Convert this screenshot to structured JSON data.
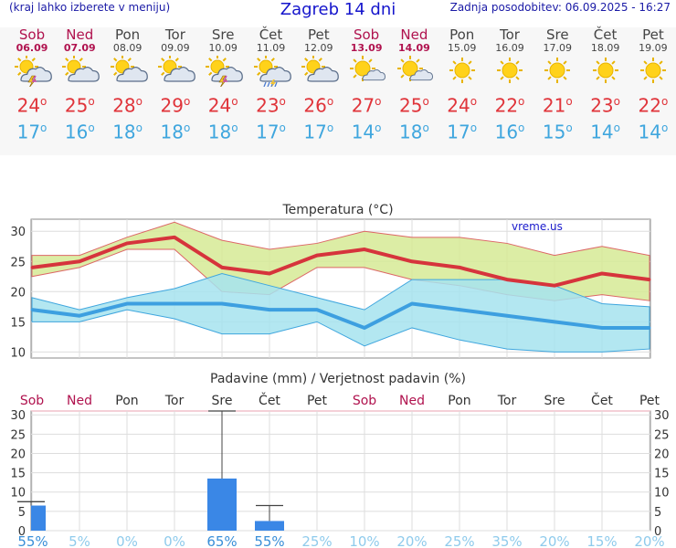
{
  "header": {
    "menu_hint": "(kraj lahko izberete v meniju)",
    "title": "Zagreb 14 dni",
    "last_update": "Zadnja posodobitev: 06.09.2025 - 16:27"
  },
  "colors": {
    "max_temp": "#e0343a",
    "min_temp": "#3fa6de",
    "weekend": "#b0124e",
    "bar": "#3a87e6",
    "max_band": "#d6ea95",
    "min_band": "#a6e3ee"
  },
  "forecast": [
    {
      "day": "Sob",
      "date": "06.09",
      "icon": "sun-cloud-thunder-icon",
      "max": "24",
      "min": "17",
      "weekend": true
    },
    {
      "day": "Ned",
      "date": "07.09",
      "icon": "sun-cloud-icon",
      "max": "25",
      "min": "16",
      "weekend": true
    },
    {
      "day": "Pon",
      "date": "08.09",
      "icon": "sun-cloud-icon",
      "max": "28",
      "min": "18",
      "weekend": false
    },
    {
      "day": "Tor",
      "date": "09.09",
      "icon": "sun-cloud-icon",
      "max": "29",
      "min": "18",
      "weekend": false
    },
    {
      "day": "Sre",
      "date": "10.09",
      "icon": "sun-cloud-thunder-icon",
      "max": "24",
      "min": "18",
      "weekend": false
    },
    {
      "day": "Čet",
      "date": "11.09",
      "icon": "sun-cloud-rain-icon",
      "max": "23",
      "min": "17",
      "weekend": false
    },
    {
      "day": "Pet",
      "date": "12.09",
      "icon": "sun-cloud-icon",
      "max": "26",
      "min": "17",
      "weekend": false
    },
    {
      "day": "Sob",
      "date": "13.09",
      "icon": "sun-small-cloud-icon",
      "max": "27",
      "min": "14",
      "weekend": true
    },
    {
      "day": "Ned",
      "date": "14.09",
      "icon": "sun-small-cloud-icon",
      "max": "25",
      "min": "18",
      "weekend": true
    },
    {
      "day": "Pon",
      "date": "15.09",
      "icon": "sun-icon",
      "max": "24",
      "min": "17",
      "weekend": false
    },
    {
      "day": "Tor",
      "date": "16.09",
      "icon": "sun-icon",
      "max": "22",
      "min": "16",
      "weekend": false
    },
    {
      "day": "Sre",
      "date": "17.09",
      "icon": "sun-icon",
      "max": "21",
      "min": "15",
      "weekend": false
    },
    {
      "day": "Čet",
      "date": "18.09",
      "icon": "sun-icon",
      "max": "23",
      "min": "14",
      "weekend": false
    },
    {
      "day": "Pet",
      "date": "19.09",
      "icon": "sun-icon",
      "max": "22",
      "min": "14",
      "weekend": false
    }
  ],
  "chart_data": [
    {
      "type": "line",
      "title": "Temperatura (°C)",
      "watermark": "vreme.us",
      "ylim": [
        9,
        32
      ],
      "yticks": [
        10,
        15,
        20,
        25,
        30
      ],
      "grid": true,
      "series": [
        {
          "values": [
            24,
            25,
            28,
            29,
            24,
            23,
            26,
            27,
            25,
            24,
            22,
            21,
            23,
            22
          ]
        },
        {
          "values": [
            17,
            16,
            18,
            18,
            18,
            17,
            17,
            14,
            18,
            17,
            16,
            15,
            14,
            14
          ]
        }
      ],
      "max_band_upper": [
        26,
        26,
        29,
        31.5,
        28.5,
        27,
        28,
        30,
        29,
        29,
        28,
        26,
        27.5,
        26
      ],
      "max_band_lower": [
        22.5,
        24,
        27,
        27,
        20,
        19.5,
        24,
        24,
        22,
        21,
        19.5,
        18.5,
        19.5,
        18.5
      ],
      "min_band_upper": [
        19,
        17,
        19,
        20.5,
        23,
        21,
        19,
        17,
        22,
        22,
        22,
        21,
        18,
        17.5
      ],
      "min_band_lower": [
        15,
        15,
        17,
        15.5,
        13,
        13,
        15,
        11,
        14,
        12,
        10.5,
        10,
        10,
        10.5
      ]
    },
    {
      "type": "bar",
      "title": "Padavine (mm) / Verjetnost padavin (%)",
      "ylim": [
        0,
        31
      ],
      "yticks": [
        0,
        5,
        10,
        15,
        20,
        25,
        30
      ],
      "categories": [
        "Sob",
        "Ned",
        "Pon",
        "Tor",
        "Sre",
        "Čet",
        "Pet",
        "Sob",
        "Ned",
        "Pon",
        "Tor",
        "Sre",
        "Čet",
        "Pet"
      ],
      "values": [
        6.5,
        0,
        0,
        0,
        13.5,
        2.5,
        0,
        0,
        0,
        0,
        0,
        0,
        0,
        0
      ],
      "error_high": [
        7.5,
        0,
        0,
        0,
        31,
        6.5,
        0,
        0,
        0,
        0,
        0,
        0,
        0,
        0
      ],
      "probability": [
        "55%",
        "5%",
        "0%",
        "0%",
        "65%",
        "55%",
        "25%",
        "10%",
        "20%",
        "25%",
        "35%",
        "20%",
        "15%",
        "20%"
      ]
    }
  ]
}
